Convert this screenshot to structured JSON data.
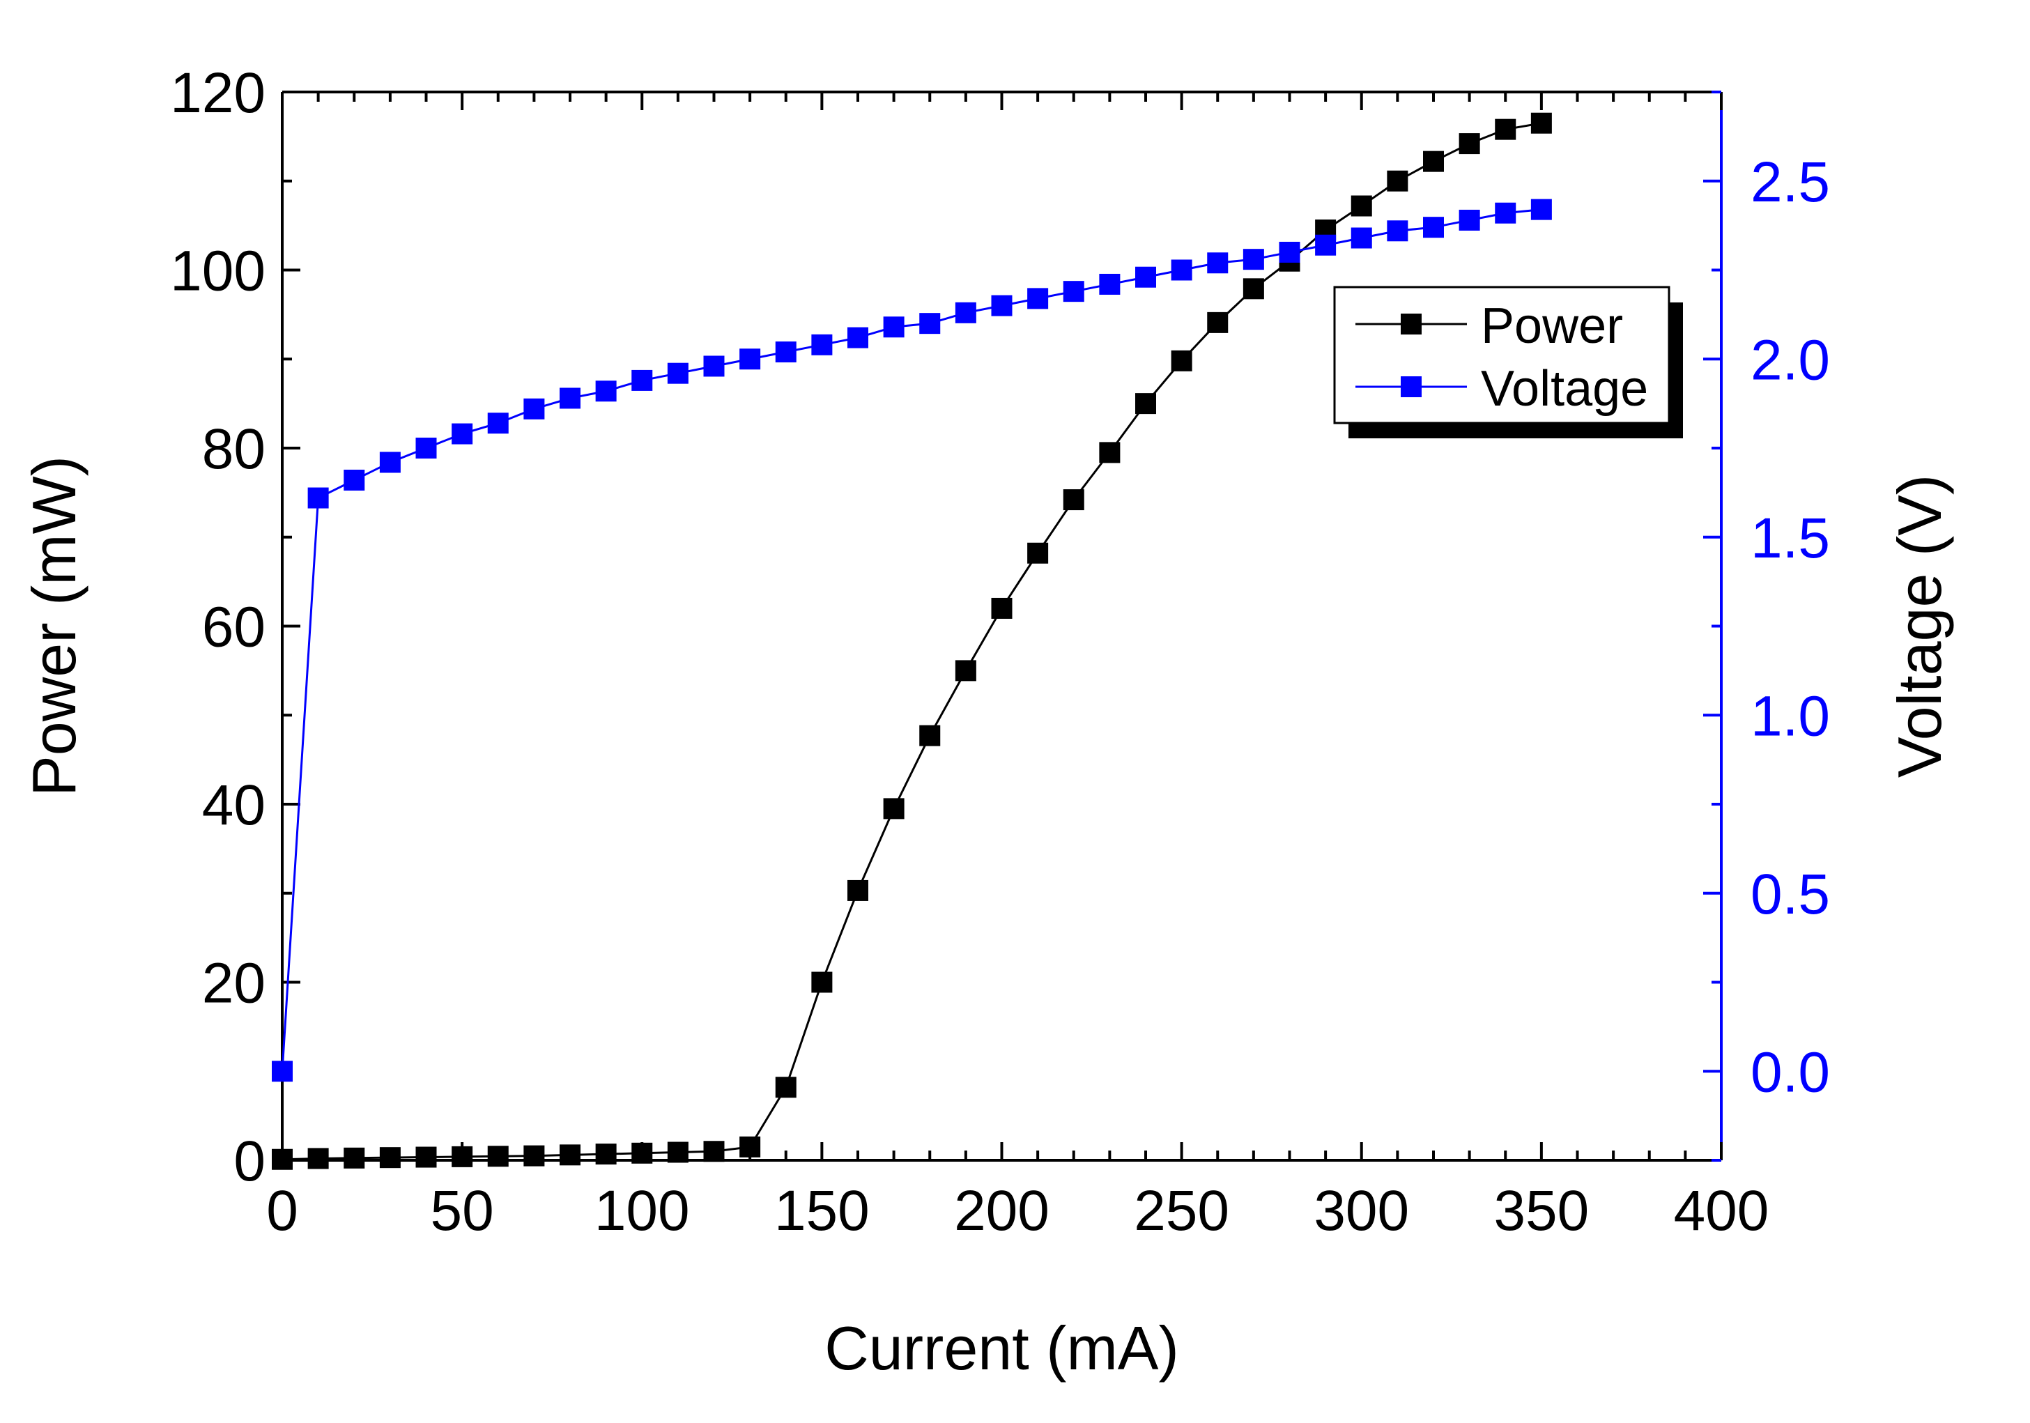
{
  "chart_data": {
    "type": "line",
    "x": [
      0,
      10,
      20,
      30,
      40,
      50,
      60,
      70,
      80,
      90,
      100,
      110,
      120,
      130,
      140,
      150,
      160,
      170,
      180,
      190,
      200,
      210,
      220,
      230,
      240,
      250,
      260,
      270,
      280,
      290,
      300,
      310,
      320,
      330,
      340,
      350
    ],
    "series": [
      {
        "name": "Power",
        "axis": "left",
        "color": "#000000",
        "values": [
          0.1,
          0.2,
          0.25,
          0.3,
          0.35,
          0.4,
          0.45,
          0.5,
          0.6,
          0.7,
          0.8,
          0.9,
          1.0,
          1.5,
          8.2,
          20.0,
          30.3,
          39.5,
          47.7,
          55.0,
          62.0,
          68.2,
          74.2,
          79.5,
          85.0,
          89.8,
          94.1,
          97.9,
          101.0,
          104.5,
          107.2,
          110.0,
          112.2,
          114.2,
          115.8,
          116.5
        ]
      },
      {
        "name": "Voltage",
        "axis": "right",
        "color": "#0000ff",
        "values": [
          0.0,
          1.61,
          1.66,
          1.71,
          1.75,
          1.79,
          1.82,
          1.86,
          1.89,
          1.91,
          1.94,
          1.96,
          1.98,
          2.0,
          2.02,
          2.04,
          2.06,
          2.09,
          2.1,
          2.13,
          2.15,
          2.17,
          2.19,
          2.21,
          2.23,
          2.25,
          2.27,
          2.28,
          2.3,
          2.32,
          2.34,
          2.36,
          2.37,
          2.39,
          2.41,
          2.42
        ]
      }
    ],
    "xlabel": "Current (mA)",
    "ylabel": "Power (mW)",
    "y2label": "Voltage (V)",
    "xlim": [
      0,
      400
    ],
    "ylim": [
      0,
      120
    ],
    "y2lim": [
      -0.25,
      2.75
    ],
    "xticks": [
      0,
      50,
      100,
      150,
      200,
      250,
      300,
      350,
      400
    ],
    "yticks": [
      0,
      20,
      40,
      60,
      80,
      100,
      120
    ],
    "y2ticks": [
      0.0,
      0.5,
      1.0,
      1.5,
      2.0,
      2.5
    ],
    "xtick_labels": [
      "0",
      "50",
      "100",
      "150",
      "200",
      "250",
      "300",
      "350",
      "400"
    ],
    "ytick_labels": [
      "0",
      "20",
      "40",
      "60",
      "80",
      "100",
      "120"
    ],
    "y2tick_labels": [
      "0.0",
      "0.5",
      "1.0",
      "1.5",
      "2.0",
      "2.5"
    ],
    "legend": {
      "placement": "top-right",
      "entries": [
        "Power",
        "Voltage"
      ]
    },
    "grid": false
  }
}
